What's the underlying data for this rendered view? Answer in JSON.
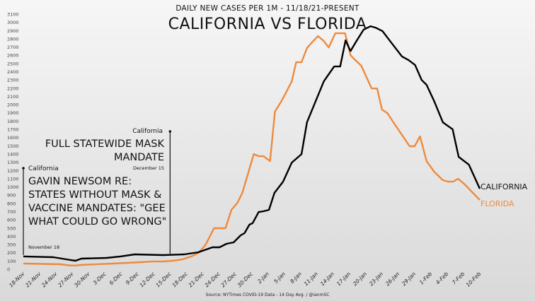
{
  "chart_data": {
    "type": "line",
    "subtitle": "DAILY NEW CASES PER 1M - 11/18/21-PRESENT",
    "title": "CALIFORNIA VS FLORIDA",
    "source": "Source: NYTimes COVID-19 Data - 14 Day Avg. / @ianmSC",
    "xlabel": "",
    "ylabel": "",
    "x_unit": "days since 18-Nov",
    "xlim": [
      0,
      84
    ],
    "ylim": [
      0,
      3100
    ],
    "y_ticks": [
      0,
      100,
      200,
      300,
      400,
      500,
      600,
      700,
      800,
      900,
      1000,
      1100,
      1200,
      1300,
      1400,
      1500,
      1600,
      1700,
      1800,
      1900,
      2000,
      2100,
      2200,
      2300,
      2400,
      2500,
      2600,
      2700,
      2800,
      2900,
      3000,
      3100
    ],
    "x_tick_labels": [
      "18-Nov",
      "21-Nov",
      "24-Nov",
      "27-Nov",
      "30-Nov",
      "3-Dec",
      "6-Dec",
      "9-Dec",
      "12-Dec",
      "15-Dec",
      "18-Dec",
      "21-Dec",
      "24-Dec",
      "27-Dec",
      "30-Dec",
      "2-Jan",
      "5-Jan",
      "8-Jan",
      "11-Jan",
      "14-Jan",
      "17-Jan",
      "20-Jan",
      "23-Jan",
      "26-Jan",
      "29-Jan",
      "1-Feb",
      "4-Feb",
      "7-Feb",
      "10-Feb"
    ],
    "grid": false,
    "series": [
      {
        "name": "CALIFORNIA",
        "color": "#000000",
        "points": [
          [
            0,
            155
          ],
          [
            5.5,
            146
          ],
          [
            8.7,
            112
          ],
          [
            9.6,
            103
          ],
          [
            10.7,
            129
          ],
          [
            15.3,
            137
          ],
          [
            17.9,
            155
          ],
          [
            20.5,
            180
          ],
          [
            25.7,
            172
          ],
          [
            29.6,
            180
          ],
          [
            32.2,
            206
          ],
          [
            34.8,
            266
          ],
          [
            36.1,
            266
          ],
          [
            37.4,
            309
          ],
          [
            38.7,
            326
          ],
          [
            40,
            412
          ],
          [
            40.7,
            438
          ],
          [
            41.6,
            541
          ],
          [
            42.2,
            560
          ],
          [
            43.3,
            695
          ],
          [
            44.2,
            704
          ],
          [
            45.2,
            721
          ],
          [
            46.2,
            927
          ],
          [
            47.8,
            1064
          ],
          [
            49.4,
            1296
          ],
          [
            51.2,
            1399
          ],
          [
            52.2,
            1785
          ],
          [
            53.8,
            2043
          ],
          [
            55.3,
            2283
          ],
          [
            57.2,
            2464
          ],
          [
            58.3,
            2464
          ],
          [
            59.3,
            2781
          ],
          [
            60.2,
            2652
          ],
          [
            61.3,
            2773
          ],
          [
            62.6,
            2910
          ],
          [
            63.9,
            2953
          ],
          [
            64.8,
            2936
          ],
          [
            66.1,
            2893
          ],
          [
            67.7,
            2755
          ],
          [
            69.7,
            2584
          ],
          [
            70.9,
            2541
          ],
          [
            72.1,
            2481
          ],
          [
            73.3,
            2300
          ],
          [
            74.2,
            2240
          ],
          [
            75.6,
            2043
          ],
          [
            77.2,
            1785
          ],
          [
            79,
            1700
          ],
          [
            80.1,
            1365
          ],
          [
            82,
            1270
          ],
          [
            84,
            978
          ]
        ]
      },
      {
        "name": "FLORIDA",
        "color": "#ee8a3c",
        "points": [
          [
            0,
            69
          ],
          [
            6.8,
            60
          ],
          [
            8.7,
            45
          ],
          [
            9.6,
            45
          ],
          [
            10.7,
            52
          ],
          [
            16.6,
            69
          ],
          [
            21.8,
            86
          ],
          [
            23.7,
            94
          ],
          [
            25.7,
            94
          ],
          [
            27.6,
            103
          ],
          [
            29.3,
            120
          ],
          [
            30.9,
            155
          ],
          [
            32.2,
            197
          ],
          [
            33.5,
            292
          ],
          [
            35.1,
            498
          ],
          [
            37.2,
            498
          ],
          [
            38.3,
            721
          ],
          [
            39.4,
            807
          ],
          [
            40.3,
            927
          ],
          [
            41.3,
            1150
          ],
          [
            42.4,
            1399
          ],
          [
            43.3,
            1373
          ],
          [
            44.2,
            1373
          ],
          [
            45.4,
            1313
          ],
          [
            46.3,
            1914
          ],
          [
            47.5,
            2043
          ],
          [
            48.2,
            2129
          ],
          [
            49.4,
            2283
          ],
          [
            50.2,
            2515
          ],
          [
            51.2,
            2515
          ],
          [
            52.2,
            2687
          ],
          [
            53.1,
            2755
          ],
          [
            54.2,
            2833
          ],
          [
            55.3,
            2773
          ],
          [
            56.2,
            2695
          ],
          [
            57.4,
            2867
          ],
          [
            59.2,
            2867
          ],
          [
            60.2,
            2601
          ],
          [
            61.1,
            2541
          ],
          [
            62.2,
            2472
          ],
          [
            63.2,
            2326
          ],
          [
            64.1,
            2197
          ],
          [
            65.1,
            2197
          ],
          [
            66,
            1940
          ],
          [
            67,
            1897
          ],
          [
            68.1,
            1785
          ],
          [
            69.6,
            1639
          ],
          [
            71.1,
            1494
          ],
          [
            72,
            1494
          ],
          [
            73,
            1614
          ],
          [
            74.2,
            1313
          ],
          [
            75.6,
            1185
          ],
          [
            77.2,
            1082
          ],
          [
            78.2,
            1064
          ],
          [
            79.1,
            1064
          ],
          [
            80,
            1099
          ],
          [
            81.1,
            1039
          ],
          [
            84,
            841
          ]
        ]
      }
    ],
    "annotations": [
      {
        "state": "California",
        "text": "GAVIN NEWSOM RE: STATES WITHOUT MASK & VACCINE MANDATES: \"GEE WHAT COULD GO WRONG\"",
        "date": "November 18",
        "day": 0
      },
      {
        "state": "California",
        "text": "FULL STATEWIDE MASK MANDATE",
        "date": "December 15",
        "day": 27
      }
    ]
  }
}
